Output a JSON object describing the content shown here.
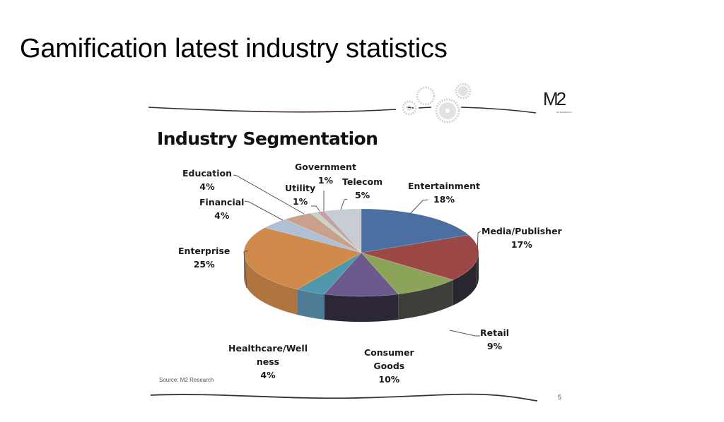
{
  "slide": {
    "title": "Gamification latest industry statistics",
    "page_number": "5",
    "source": "Source: M2 Research",
    "logo": {
      "text": "M2",
      "subtext": "M2 RESEARCH"
    }
  },
  "chart_data": {
    "type": "pie",
    "title": "Industry Segmentation",
    "style": "3d-pie",
    "start_angle": "12 o'clock, clockwise",
    "legend": "none (data labels with leader lines)",
    "categories": [
      "Entertainment",
      "Media/Publisher",
      "Retail",
      "Consumer Goods",
      "Healthcare/Wellness",
      "Enterprise",
      "Financial",
      "Education",
      "Utility",
      "Government",
      "Telecom"
    ],
    "values": [
      18,
      17,
      9,
      10,
      4,
      25,
      4,
      4,
      1,
      1,
      5
    ],
    "unit": "%",
    "colors": [
      "#4a6fa0",
      "#9c4846",
      "#8ca45a",
      "#6c5a8c",
      "#4f97aa",
      "#cf8a4c",
      "#b0c0d4",
      "#c8a08c",
      "#c8d4c0",
      "#c4a0a8",
      "#c8ccd4"
    ],
    "labels": [
      {
        "name": "Entertainment",
        "pct": "18%"
      },
      {
        "name": "Media/Publisher",
        "pct": "17%"
      },
      {
        "name": "Retail",
        "pct": "9%"
      },
      {
        "name": "Consumer",
        "name2": "Goods",
        "pct": "10%"
      },
      {
        "name": "Healthcare/Well",
        "name2": "ness",
        "pct": "4%"
      },
      {
        "name": "Enterprise",
        "pct": "25%"
      },
      {
        "name": "Financial",
        "pct": "4%"
      },
      {
        "name": "Education",
        "pct": "4%"
      },
      {
        "name": "Utility",
        "pct": "1%"
      },
      {
        "name": "Government",
        "pct": "1%"
      },
      {
        "name": "Telecom",
        "pct": "5%"
      }
    ]
  }
}
